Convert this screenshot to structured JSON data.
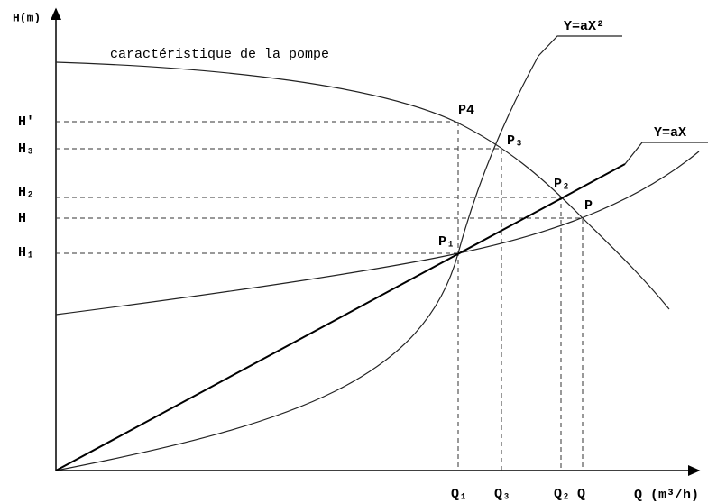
{
  "axes": {
    "y_label": "H(m)",
    "x_label": "Q (m³/h)"
  },
  "curves": {
    "pump": "caractéristique de la pompe",
    "quadratic": "Y=aX²",
    "linear": "Y=aX"
  },
  "points": {
    "p4": "P4",
    "p3": "P₃",
    "p2": "P₂",
    "p": "P",
    "p1": "P₁"
  },
  "h_levels": {
    "h_prime": "H'",
    "h3": "H₃",
    "h2": "H₂",
    "h": "H",
    "h1": "H₁"
  },
  "q_levels": {
    "q1": "Q₁",
    "q3": "Q₃",
    "q2": "Q₂",
    "q": "Q"
  }
}
